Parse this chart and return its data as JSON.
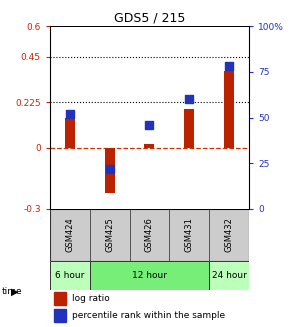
{
  "title": "GDS5 / 215",
  "samples": [
    "GSM424",
    "GSM425",
    "GSM426",
    "GSM431",
    "GSM432"
  ],
  "log_ratio": [
    0.15,
    -0.22,
    0.02,
    0.19,
    0.38
  ],
  "percentile_rank_pct": [
    52,
    22,
    46,
    60,
    78
  ],
  "ylim_left": [
    -0.3,
    0.6
  ],
  "ylim_right": [
    0,
    100
  ],
  "yticks_left": [
    -0.3,
    0,
    0.225,
    0.45,
    0.6
  ],
  "yticks_right": [
    0,
    25,
    50,
    75,
    100
  ],
  "hlines": [
    0.225,
    0.45
  ],
  "bar_color": "#bb2200",
  "dot_color": "#2233bb",
  "dashed_color": "#cc3300",
  "bg_color": "#ffffff",
  "left_tick_color": "#cc2200",
  "right_tick_color": "#2233bb",
  "time_groups": [
    {
      "label": "6 hour",
      "cols": [
        0
      ],
      "color": "#bbffbb"
    },
    {
      "label": "12 hour",
      "cols": [
        1,
        2,
        3
      ],
      "color": "#77ee77"
    },
    {
      "label": "24 hour",
      "cols": [
        4
      ],
      "color": "#bbffbb"
    }
  ],
  "bar_width": 0.25,
  "dot_size": 30
}
